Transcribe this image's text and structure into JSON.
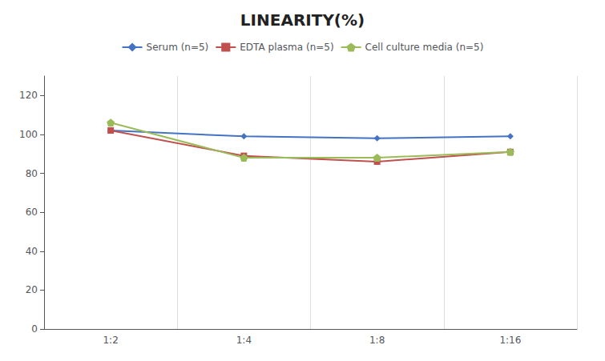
{
  "chart_data": {
    "type": "line",
    "title": "LINEARITY(%)",
    "categories": [
      "1:2",
      "1:4",
      "1:8",
      "1:16"
    ],
    "series": [
      {
        "name": "Serum (n=5)",
        "color": "#4472C4",
        "marker": "diamond",
        "values": [
          102,
          99,
          98,
          99
        ]
      },
      {
        "name": "EDTA plasma (n=5)",
        "color": "#C0504D",
        "marker": "square",
        "values": [
          102,
          89,
          86,
          91
        ]
      },
      {
        "name": "Cell culture media (n=5)",
        "color": "#9BBB59",
        "marker": "pentagon",
        "values": [
          106,
          88,
          88,
          91
        ]
      }
    ],
    "ylim": [
      0,
      130
    ],
    "yticks": [
      0,
      20,
      40,
      60,
      80,
      100,
      120
    ],
    "grid": "x",
    "legend": "top"
  }
}
